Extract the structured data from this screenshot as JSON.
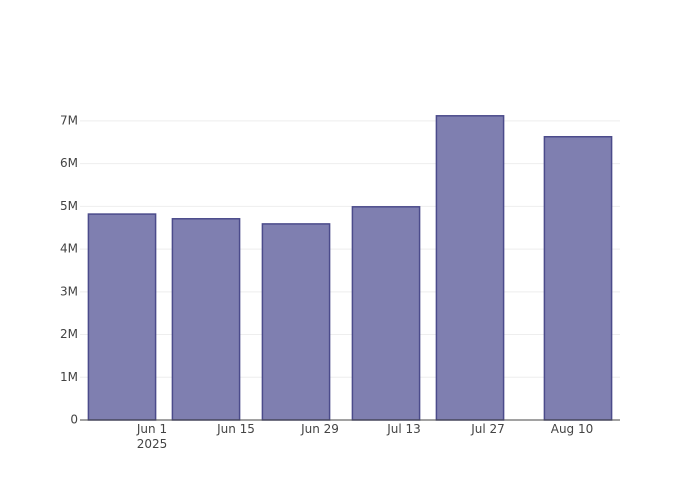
{
  "chart_data": {
    "type": "bar",
    "x": [
      "2025-05-27",
      "2025-06-10",
      "2025-06-25",
      "2025-07-10",
      "2025-07-24",
      "2025-08-11"
    ],
    "values": [
      4820000,
      4710000,
      4590000,
      4990000,
      7120000,
      6630000
    ],
    "color": "#7f7fb0",
    "line_color": "#4b4b8b",
    "xlim": [
      "2025-05-20",
      "2025-08-18"
    ],
    "xticks": [
      {
        "value": "2025-06-01",
        "label": "Jun 1\n2025"
      },
      {
        "value": "2025-06-15",
        "label": "Jun 15"
      },
      {
        "value": "2025-06-29",
        "label": "Jun 29"
      },
      {
        "value": "2025-07-13",
        "label": "Jul 13"
      },
      {
        "value": "2025-07-27",
        "label": "Jul 27"
      },
      {
        "value": "2025-08-10",
        "label": "Aug 10"
      }
    ],
    "ylim": [
      0,
      7490000
    ],
    "yticks": [
      0,
      {
        "value": 1000000,
        "label": "1M"
      },
      {
        "value": 2000000,
        "label": "2M"
      },
      {
        "value": 3000000,
        "label": "3M"
      },
      {
        "value": 4000000,
        "label": "4M"
      },
      {
        "value": 5000000,
        "label": "5M"
      },
      {
        "value": 6000000,
        "label": "6M"
      },
      {
        "value": 7000000,
        "label": "7M"
      }
    ],
    "grid": true
  }
}
